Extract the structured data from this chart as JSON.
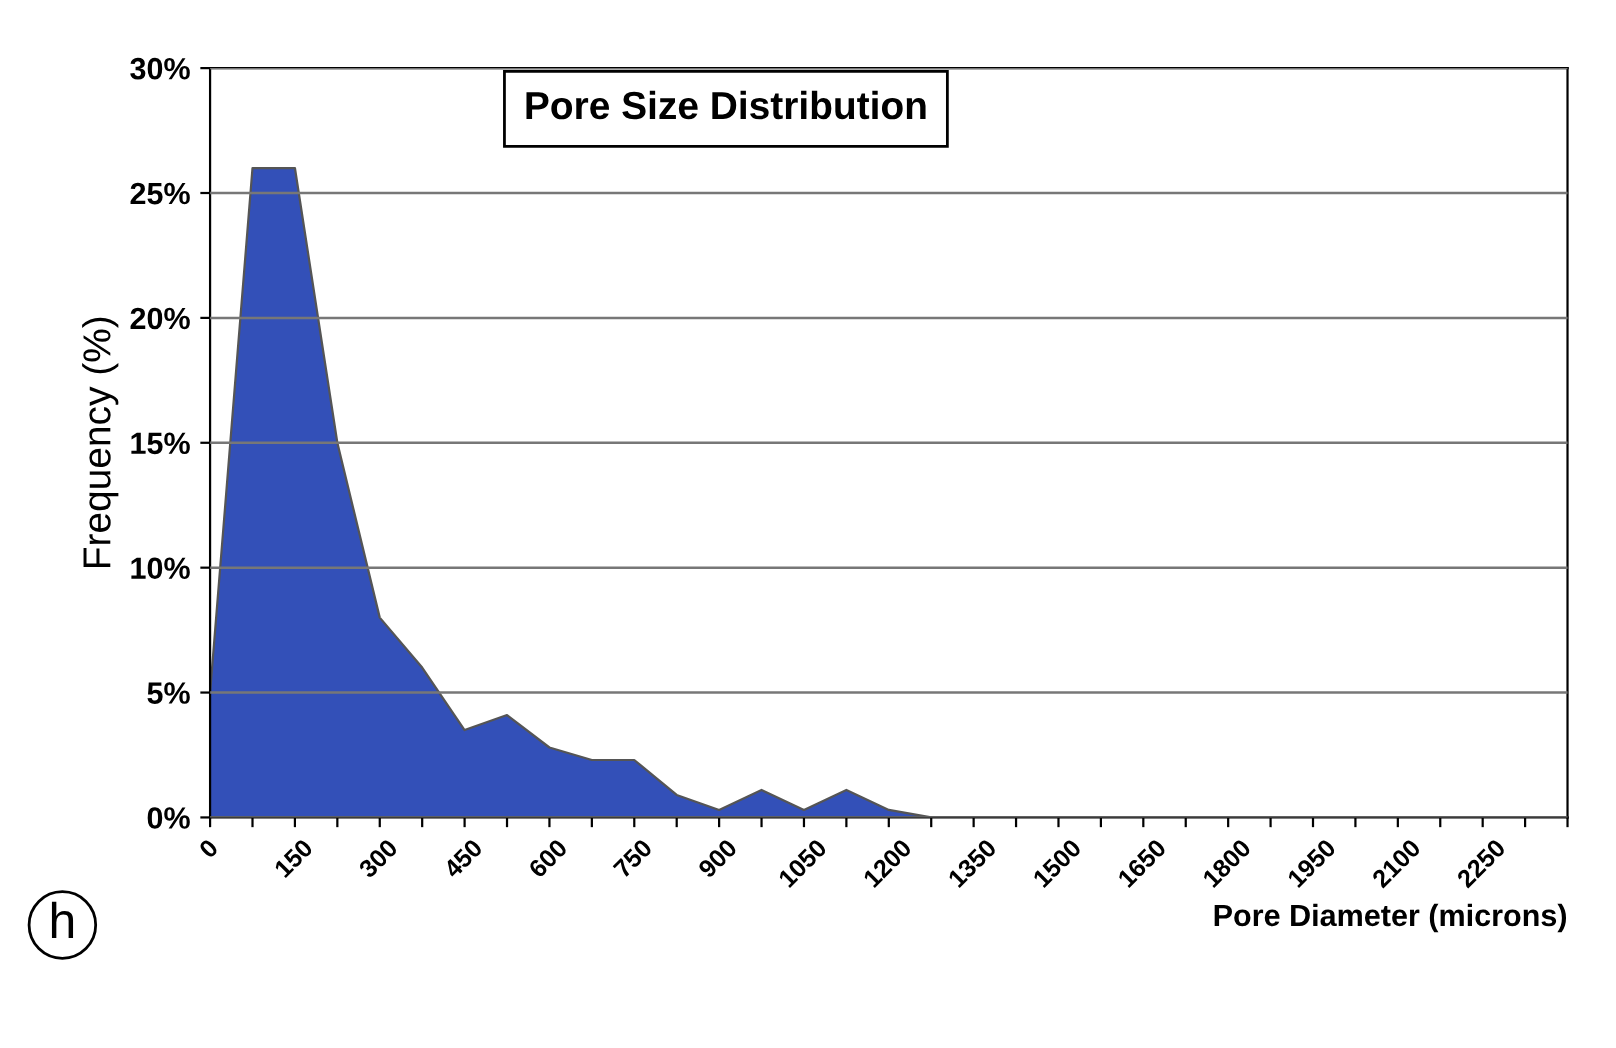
{
  "chart_data": {
    "type": "area",
    "title": "Pore Size Distribution",
    "xlabel": "Pore Diameter (microns)",
    "ylabel": "Frequency (%)",
    "annotations": [
      "h"
    ],
    "x": [
      0,
      75,
      150,
      225,
      300,
      375,
      450,
      525,
      600,
      675,
      750,
      825,
      900,
      975,
      1050,
      1125,
      1200,
      1275,
      1350,
      1425,
      1500,
      1575,
      1650,
      1725,
      1800,
      1875,
      1950,
      2025,
      2100,
      2175,
      2250,
      2325,
      2400
    ],
    "series": [
      {
        "color": "#3350b8",
        "values": [
          5,
          26,
          26,
          15,
          8,
          6,
          3.5,
          4.1,
          2.8,
          2.3,
          2.3,
          0.9,
          0.3,
          1.1,
          0.3,
          1.1,
          0.3,
          0,
          0,
          0,
          0,
          0,
          0,
          0,
          0,
          0,
          0,
          0,
          0,
          0,
          0,
          0,
          0
        ]
      }
    ],
    "xlim": [
      0,
      2400
    ],
    "xticks": [
      {
        "value": 0,
        "label": "0"
      },
      {
        "value": 75,
        "label": null
      },
      {
        "value": 150,
        "label": "150"
      },
      {
        "value": 225,
        "label": null
      },
      {
        "value": 300,
        "label": "300"
      },
      {
        "value": 375,
        "label": null
      },
      {
        "value": 450,
        "label": "450"
      },
      {
        "value": 525,
        "label": null
      },
      {
        "value": 600,
        "label": "600"
      },
      {
        "value": 675,
        "label": null
      },
      {
        "value": 750,
        "label": "750"
      },
      {
        "value": 825,
        "label": null
      },
      {
        "value": 900,
        "label": "900"
      },
      {
        "value": 975,
        "label": null
      },
      {
        "value": 1050,
        "label": "1050"
      },
      {
        "value": 1125,
        "label": null
      },
      {
        "value": 1200,
        "label": "1200"
      },
      {
        "value": 1275,
        "label": null
      },
      {
        "value": 1350,
        "label": "1350"
      },
      {
        "value": 1425,
        "label": null
      },
      {
        "value": 1500,
        "label": "1500"
      },
      {
        "value": 1575,
        "label": null
      },
      {
        "value": 1650,
        "label": "1650"
      },
      {
        "value": 1725,
        "label": null
      },
      {
        "value": 1800,
        "label": "1800"
      },
      {
        "value": 1875,
        "label": null
      },
      {
        "value": 1950,
        "label": "1950"
      },
      {
        "value": 2025,
        "label": null
      },
      {
        "value": 2100,
        "label": "2100"
      },
      {
        "value": 2175,
        "label": null
      },
      {
        "value": 2250,
        "label": "2250"
      },
      {
        "value": 2325,
        "label": null
      },
      {
        "value": 2400,
        "label": null
      }
    ],
    "ylim": [
      0,
      30
    ],
    "yticks": [
      {
        "value": 0,
        "label": "0%"
      },
      {
        "value": 5,
        "label": "5%"
      },
      {
        "value": 10,
        "label": "10%"
      },
      {
        "value": 15,
        "label": "15%"
      },
      {
        "value": 20,
        "label": "20%"
      },
      {
        "value": 25,
        "label": "25%"
      },
      {
        "value": 30,
        "label": "30%"
      }
    ],
    "grid": "y",
    "legend": false
  }
}
